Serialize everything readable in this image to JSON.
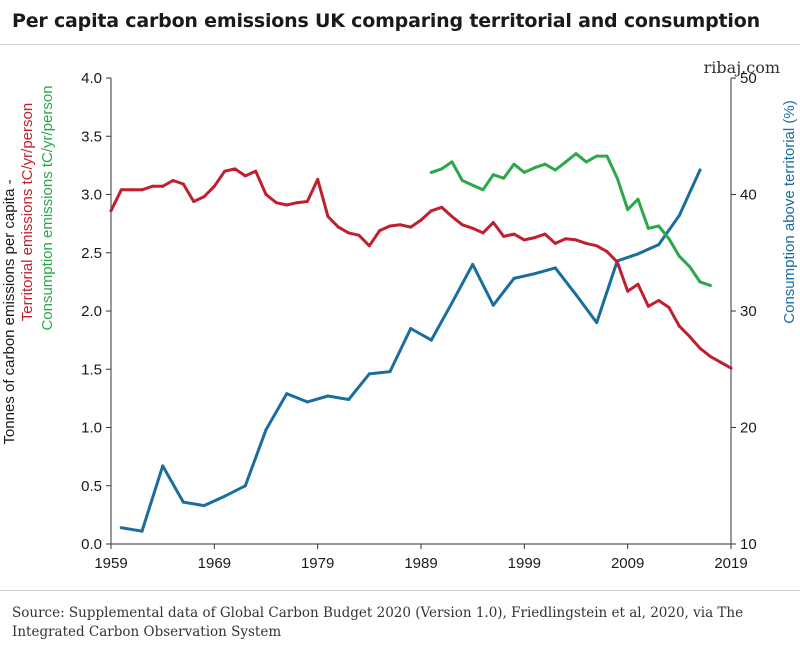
{
  "title": "Per capita carbon emissions UK comparing territorial and consumption",
  "site": "ribaj.com",
  "source": "Source: Supplemental data of Global Carbon Budget 2020 (Version 1.0), Friedlingstein et al, 2020, via The Integrated Carbon Observation System",
  "chart_data": {
    "type": "line",
    "ylabel_left": {
      "line1": "Tonnes of carbon emissions per capita -",
      "line2": "Territorial emissions tC/yr/person",
      "line3": "Consumption emissions tC/yr/person"
    },
    "ylabel_right": "Consumption above territorial (%)",
    "xlim": [
      1959,
      2019
    ],
    "xticks": [
      "1959",
      "1969",
      "1979",
      "1989",
      "1999",
      "2009",
      "2019"
    ],
    "ylim_left": [
      0,
      4
    ],
    "yticks_left": [
      "0.0",
      "0.5",
      "1.0",
      "1.5",
      "2.0",
      "2.5",
      "3.0",
      "3.5",
      "4.0"
    ],
    "ylim_right": [
      10,
      50
    ],
    "yticks_right": [
      "10",
      "20",
      "30",
      "40",
      "50"
    ],
    "grid": false,
    "colors": {
      "territorial": "#c0202e",
      "consumption": "#2aa84a",
      "ratio": "#1a6e9e"
    },
    "series": [
      {
        "key": "territorial",
        "axis": "left",
        "x": [
          1959,
          1960,
          1961,
          1962,
          1963,
          1964,
          1965,
          1966,
          1967,
          1968,
          1969,
          1970,
          1971,
          1972,
          1973,
          1974,
          1975,
          1976,
          1977,
          1978,
          1979,
          1980,
          1981,
          1982,
          1983,
          1984,
          1985,
          1986,
          1987,
          1988,
          1989,
          1990,
          1991,
          1992,
          1993,
          1994,
          1995,
          1996,
          1997,
          1998,
          1999,
          2000,
          2001,
          2002,
          2003,
          2004,
          2005,
          2006,
          2007,
          2008,
          2009,
          2010,
          2011,
          2012,
          2013,
          2014,
          2015,
          2016,
          2017,
          2018,
          2019
        ],
        "y": [
          2.86,
          3.04,
          3.04,
          3.04,
          3.07,
          3.07,
          3.12,
          3.09,
          2.94,
          2.98,
          3.07,
          3.2,
          3.22,
          3.16,
          3.2,
          3.0,
          2.93,
          2.91,
          2.93,
          2.94,
          3.13,
          2.81,
          2.72,
          2.67,
          2.65,
          2.56,
          2.69,
          2.73,
          2.74,
          2.72,
          2.78,
          2.86,
          2.89,
          2.81,
          2.74,
          2.71,
          2.67,
          2.76,
          2.64,
          2.66,
          2.61,
          2.63,
          2.66,
          2.58,
          2.62,
          2.61,
          2.58,
          2.56,
          2.51,
          2.42,
          2.17,
          2.23,
          2.04,
          2.09,
          2.03,
          1.87,
          1.78,
          1.68,
          1.61,
          1.56,
          1.51
        ]
      },
      {
        "key": "consumption",
        "axis": "left",
        "x": [
          1990,
          1991,
          1992,
          1993,
          1994,
          1995,
          1996,
          1997,
          1998,
          1999,
          2000,
          2001,
          2002,
          2003,
          2004,
          2005,
          2006,
          2007,
          2008,
          2009,
          2010,
          2011,
          2012,
          2013,
          2014,
          2015,
          2016,
          2017
        ],
        "y": [
          3.19,
          3.22,
          3.28,
          3.12,
          3.08,
          3.04,
          3.17,
          3.14,
          3.26,
          3.19,
          3.23,
          3.26,
          3.21,
          3.28,
          3.35,
          3.28,
          3.33,
          3.33,
          3.14,
          2.87,
          2.96,
          2.71,
          2.73,
          2.62,
          2.47,
          2.38,
          2.25,
          2.22
        ]
      },
      {
        "key": "ratio",
        "axis": "right",
        "x": [
          1960,
          1962,
          1964,
          1966,
          1968,
          1970,
          1972,
          1974,
          1976,
          1978,
          1980,
          1982,
          1984,
          1986,
          1988,
          1990,
          1992,
          1994,
          1996,
          1998,
          2000,
          2002,
          2004,
          2006,
          2008,
          2010,
          2012,
          2014,
          2016
        ],
        "y": [
          11.4,
          11.1,
          16.7,
          13.6,
          13.3,
          14.1,
          15.0,
          19.8,
          22.9,
          22.2,
          22.7,
          22.4,
          24.6,
          24.8,
          28.5,
          27.5,
          30.7,
          34.0,
          30.5,
          32.8,
          33.2,
          33.7,
          31.4,
          29.0,
          34.3,
          34.9,
          35.7,
          38.2,
          42.1
        ]
      }
    ]
  }
}
